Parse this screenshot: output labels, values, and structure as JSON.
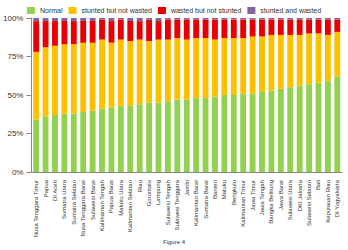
{
  "chart_data": {
    "type": "bar",
    "stacked": true,
    "grid": false,
    "legend": "top",
    "caption": "Figure 4",
    "categories": [
      "Nusa Tenggara Timur",
      "Papua",
      "DI Aceh",
      "Sumatra Utara",
      "Sumatra Selatan",
      "Nusa Tenggara Barat",
      "Sulawesi Barat",
      "Kalimantan Tengah",
      "Papua Barat",
      "Maluku Utara",
      "Kalimantan Selatan",
      "Riau",
      "Gorontalo",
      "Lampung",
      "Sulawesi Tengah",
      "Sulawesi Tenggara",
      "Jambi",
      "Kalimantan Barat",
      "Sumatra Barat",
      "Banten",
      "Maluku",
      "Bengkulu",
      "Kalimantan Timur",
      "Jawa Timur",
      "Jawa Tengah",
      "Bangka Belitung",
      "Jawa Barat",
      "Sulawesi Utara",
      "DKI Jakarta",
      "Sulawesi Selatan",
      "Bali",
      "Kepulauan Riau",
      "DI Yogyakarta"
    ],
    "series": [
      {
        "name": "Normal",
        "color": "#92d050",
        "values": [
          34,
          36,
          37,
          38,
          38,
          39,
          40,
          41,
          42,
          43,
          43,
          44,
          45,
          45,
          46,
          47,
          47,
          48,
          48,
          49,
          50,
          50,
          51,
          51,
          52,
          53,
          54,
          55,
          56,
          57,
          58,
          59,
          62
        ]
      },
      {
        "name": "stunted but not wasted",
        "color": "#ffc000",
        "values": [
          44,
          45,
          45,
          45,
          45,
          45,
          44,
          45,
          42,
          43,
          42,
          42,
          40,
          41,
          40,
          40,
          39,
          39,
          39,
          37,
          37,
          37,
          36,
          37,
          36,
          36,
          35,
          34,
          33,
          33,
          32,
          30,
          29
        ]
      },
      {
        "name": "wasted but not stunted",
        "color": "#e80000",
        "values": [
          20,
          17,
          16,
          15,
          15,
          14,
          14,
          13,
          14,
          13,
          13,
          12,
          14,
          12,
          13,
          12,
          13,
          12,
          12,
          13,
          12,
          12,
          12,
          11,
          11,
          10,
          10,
          10,
          10,
          9,
          9,
          10,
          8
        ]
      },
      {
        "name": "stunted and wasted",
        "color": "#8064a2",
        "values": [
          2,
          2,
          2,
          2,
          2,
          2,
          2,
          1,
          2,
          1,
          2,
          2,
          1,
          2,
          1,
          1,
          1,
          1,
          1,
          1,
          1,
          1,
          1,
          1,
          1,
          1,
          1,
          1,
          1,
          1,
          1,
          1,
          1
        ]
      }
    ],
    "ylim": [
      0,
      100
    ],
    "yticks": [
      {
        "value": 0,
        "label": "0%"
      },
      {
        "value": 25,
        "label": "25%"
      },
      {
        "value": 50,
        "label": "50%"
      },
      {
        "value": 75,
        "label": "75%"
      },
      {
        "value": 100,
        "label": "100%"
      }
    ]
  }
}
